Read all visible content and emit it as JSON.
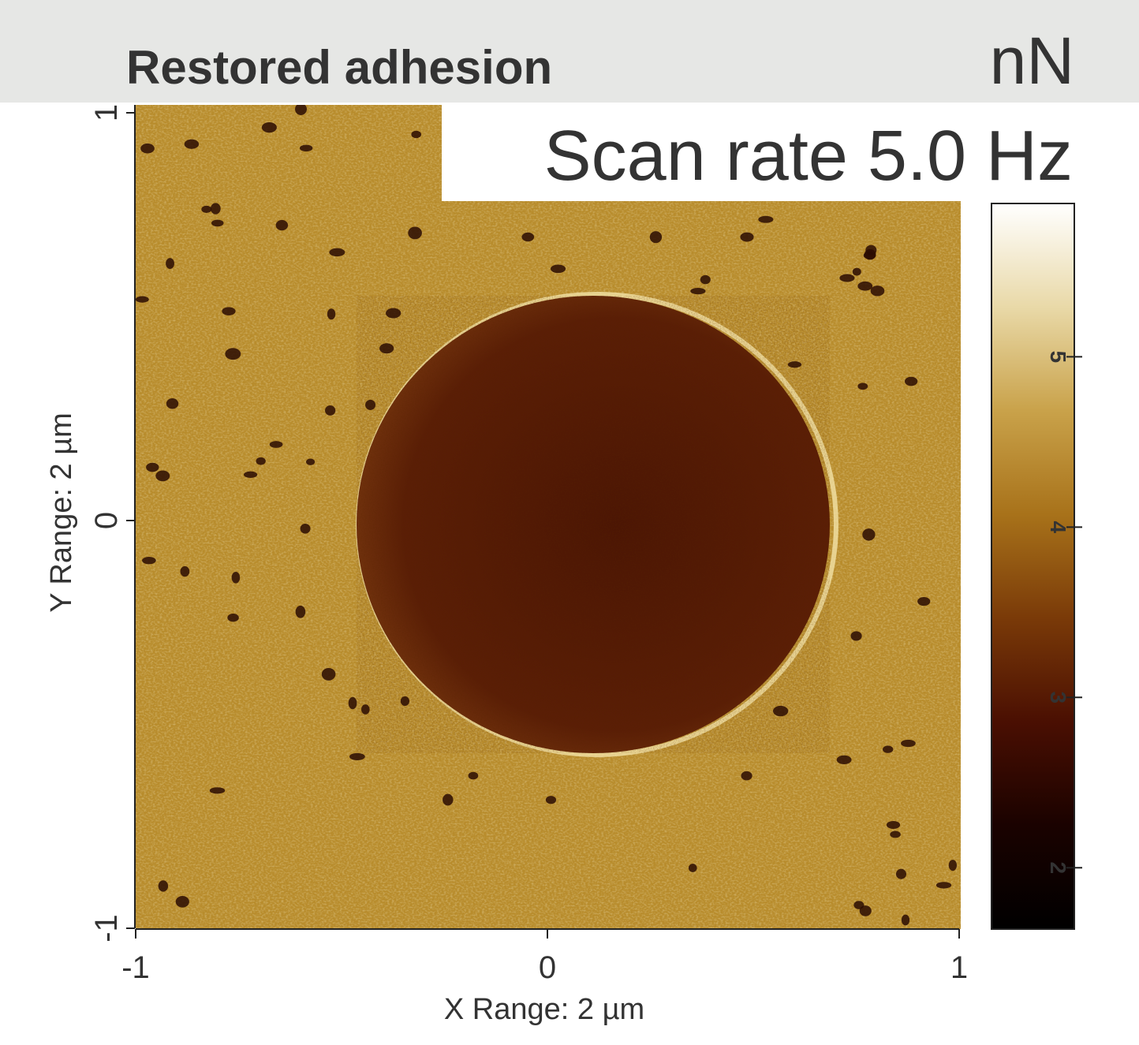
{
  "chart_data": {
    "type": "image",
    "title": "Restored adhesion",
    "unit": "nN",
    "annotation": "Scan rate 5.0 Hz",
    "x_label": "X Range: 2 µm",
    "y_label": "Y Range: 2 µm",
    "xlim": [
      -1,
      1
    ],
    "xticks": [
      -1,
      0,
      1
    ],
    "ylim": [
      -1,
      1
    ],
    "yticks": [
      -1,
      0,
      1
    ],
    "colorbar": {
      "clim": [
        1.64,
        5.9
      ],
      "ticks": [
        2,
        3,
        4,
        5
      ],
      "colors": [
        "#000000",
        "#1a0200",
        "#4a0f02",
        "#7a3a08",
        "#a8721a",
        "#c9a24a",
        "#e9d9a8",
        "#ffffff"
      ]
    }
  }
}
